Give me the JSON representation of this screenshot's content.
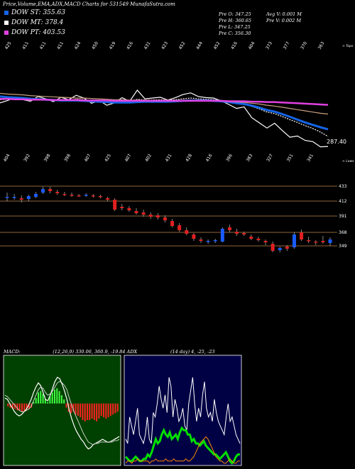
{
  "header": {
    "title": "Price,Volume,EMA,ADX,MACD Charts for 531549 MunafaSutra.com"
  },
  "legend": [
    {
      "label": "DOW ST: 355.63",
      "color": "#1565e6"
    },
    {
      "label": "DOW MT: 378.4",
      "color": "#ffffff"
    },
    {
      "label": "DOW PT: 403.53",
      "color": "#e040e0"
    }
  ],
  "ohlc": {
    "open": "Pre   O: 347.25",
    "high": "Pre   H: 360.65",
    "low": "Pre   L: 347.25",
    "close": "Pre   C: 356.30",
    "avg_vol": "Avg V: 0.001 M",
    "prev_vol": "Pre   V: 0.002  M"
  },
  "chart_data": [
    {
      "type": "line",
      "name": "price-ema",
      "top_tick_labels": [
        "425",
        "411",
        "411",
        "411",
        "424",
        "450",
        "419",
        "416",
        "431",
        "423",
        "452",
        "444",
        "452",
        "416",
        "404",
        "373",
        "377",
        "370",
        "363"
      ],
      "top_tick_title": "< Tops",
      "bottom_tick_labels": [
        "404",
        "392",
        "398",
        "398",
        "407",
        "425",
        "407",
        "402",
        "431",
        "428",
        "416",
        "396",
        "383",
        "327",
        "351",
        "341"
      ],
      "bottom_tick_title": "< Lows",
      "last_value_label": "287.40",
      "series": [
        {
          "color": "#ffffff",
          "values": [
            396,
            402,
            410,
            404,
            400,
            412,
            406,
            399,
            410,
            404,
            415,
            408,
            395,
            402,
            390,
            396,
            409,
            400,
            428,
            406,
            408,
            410,
            403,
            409,
            417,
            421,
            412,
            409,
            408,
            401,
            392,
            382,
            386,
            359,
            346,
            333,
            345,
            327,
            310,
            313,
            302,
            299,
            286,
            287
          ]
        },
        {
          "color": "#ffffff",
          "values": [
            404,
            405,
            406,
            405,
            403,
            404,
            404,
            402,
            403,
            403,
            405,
            404,
            401,
            401,
            398,
            398,
            401,
            400,
            405,
            403,
            403,
            404,
            403,
            404,
            406,
            408,
            406,
            405,
            404,
            402,
            399,
            395,
            394,
            387,
            381,
            373,
            369,
            362,
            354,
            347,
            339,
            332,
            323,
            312
          ]
        },
        {
          "color": "#1565e6",
          "values": [
            412,
            410,
            409,
            408,
            406,
            405,
            404,
            403,
            402,
            402,
            402,
            401,
            400,
            399,
            398,
            397,
            397,
            397,
            398,
            399,
            399,
            399,
            399,
            400,
            401,
            402,
            402,
            402,
            401,
            400,
            398,
            395,
            393,
            389,
            384,
            378,
            374,
            368,
            361,
            354,
            347,
            341,
            335,
            330
          ]
        },
        {
          "color": "#c8a080",
          "values": [
            420,
            418,
            417,
            416,
            414,
            413,
            412,
            411,
            410,
            409,
            408,
            408,
            407,
            406,
            405,
            404,
            404,
            403,
            403,
            403,
            402,
            402,
            402,
            402,
            402,
            402,
            402,
            401,
            401,
            400,
            399,
            398,
            397,
            395,
            393,
            390,
            388,
            385,
            382,
            379,
            376,
            373,
            370,
            368
          ]
        },
        {
          "color": "#e040e0",
          "values": [
            406,
            406,
            405,
            405,
            404,
            404,
            404,
            403,
            403,
            403,
            403,
            402,
            402,
            402,
            402,
            401,
            401,
            401,
            401,
            401,
            401,
            401,
            401,
            401,
            401,
            401,
            401,
            401,
            401,
            401,
            400,
            400,
            400,
            399,
            399,
            398,
            398,
            397,
            396,
            395,
            394,
            393,
            392,
            391
          ]
        }
      ]
    },
    {
      "type": "candlestick",
      "name": "price-candles",
      "price_levels": [
        "433",
        "412",
        "391",
        "368",
        "349"
      ],
      "candles": [
        {
          "o": 418,
          "h": 424,
          "l": 412,
          "c": 418,
          "up": true
        },
        {
          "o": 418,
          "h": 422,
          "l": 414,
          "c": 418,
          "up": true
        },
        {
          "o": 416,
          "h": 420,
          "l": 410,
          "c": 414,
          "up": false
        },
        {
          "o": 415,
          "h": 421,
          "l": 412,
          "c": 419,
          "up": true
        },
        {
          "o": 418,
          "h": 425,
          "l": 416,
          "c": 422,
          "up": true
        },
        {
          "o": 424,
          "h": 432,
          "l": 422,
          "c": 429,
          "up": true
        },
        {
          "o": 429,
          "h": 432,
          "l": 423,
          "c": 426,
          "up": false
        },
        {
          "o": 425,
          "h": 428,
          "l": 421,
          "c": 423,
          "up": false
        },
        {
          "o": 422,
          "h": 425,
          "l": 419,
          "c": 421,
          "up": false
        },
        {
          "o": 421,
          "h": 424,
          "l": 418,
          "c": 420,
          "up": false
        },
        {
          "o": 420,
          "h": 422,
          "l": 418,
          "c": 420,
          "up": false
        },
        {
          "o": 420,
          "h": 423,
          "l": 418,
          "c": 421,
          "up": true
        },
        {
          "o": 420,
          "h": 422,
          "l": 417,
          "c": 419,
          "up": false
        },
        {
          "o": 419,
          "h": 421,
          "l": 416,
          "c": 418,
          "up": false
        },
        {
          "o": 416,
          "h": 418,
          "l": 412,
          "c": 414,
          "up": false
        },
        {
          "o": 414,
          "h": 416,
          "l": 398,
          "c": 400,
          "up": false
        },
        {
          "o": 404,
          "h": 408,
          "l": 399,
          "c": 402,
          "up": false
        },
        {
          "o": 402,
          "h": 405,
          "l": 397,
          "c": 399,
          "up": false
        },
        {
          "o": 398,
          "h": 402,
          "l": 393,
          "c": 395,
          "up": false
        },
        {
          "o": 396,
          "h": 400,
          "l": 390,
          "c": 393,
          "up": false
        },
        {
          "o": 393,
          "h": 396,
          "l": 387,
          "c": 390,
          "up": false
        },
        {
          "o": 392,
          "h": 395,
          "l": 386,
          "c": 389,
          "up": false
        },
        {
          "o": 389,
          "h": 392,
          "l": 382,
          "c": 385,
          "up": false
        },
        {
          "o": 384,
          "h": 387,
          "l": 375,
          "c": 377,
          "up": false
        },
        {
          "o": 378,
          "h": 381,
          "l": 369,
          "c": 371,
          "up": false
        },
        {
          "o": 371,
          "h": 375,
          "l": 364,
          "c": 366,
          "up": false
        },
        {
          "o": 365,
          "h": 367,
          "l": 356,
          "c": 359,
          "up": false
        },
        {
          "o": 358,
          "h": 361,
          "l": 353,
          "c": 356,
          "up": false
        },
        {
          "o": 356,
          "h": 358,
          "l": 352,
          "c": 355,
          "up": true
        },
        {
          "o": 356,
          "h": 359,
          "l": 353,
          "c": 357,
          "up": true
        },
        {
          "o": 355,
          "h": 375,
          "l": 354,
          "c": 373,
          "up": true
        },
        {
          "o": 375,
          "h": 379,
          "l": 368,
          "c": 371,
          "up": false
        },
        {
          "o": 369,
          "h": 373,
          "l": 363,
          "c": 366,
          "up": false
        },
        {
          "o": 367,
          "h": 369,
          "l": 363,
          "c": 365,
          "up": false
        },
        {
          "o": 362,
          "h": 365,
          "l": 357,
          "c": 359,
          "up": false
        },
        {
          "o": 359,
          "h": 362,
          "l": 355,
          "c": 357,
          "up": false
        },
        {
          "o": 356,
          "h": 358,
          "l": 350,
          "c": 354,
          "up": false
        },
        {
          "o": 352,
          "h": 355,
          "l": 340,
          "c": 342,
          "up": false
        },
        {
          "o": 343,
          "h": 348,
          "l": 340,
          "c": 346,
          "up": true
        },
        {
          "o": 345,
          "h": 350,
          "l": 342,
          "c": 348,
          "up": false
        },
        {
          "o": 347,
          "h": 368,
          "l": 345,
          "c": 365,
          "up": true
        },
        {
          "o": 368,
          "h": 372,
          "l": 356,
          "c": 358,
          "up": false
        },
        {
          "o": 357,
          "h": 362,
          "l": 353,
          "c": 356,
          "up": false
        },
        {
          "o": 354,
          "h": 357,
          "l": 350,
          "c": 355,
          "up": false
        },
        {
          "o": 356,
          "h": 363,
          "l": 352,
          "c": 354,
          "up": false
        },
        {
          "o": 353,
          "h": 361,
          "l": 349,
          "c": 358,
          "up": true
        }
      ]
    },
    {
      "type": "bar",
      "name": "macd",
      "label": "MACD:",
      "params": "(12,26,9) 330.06, 360.9, -19.84 ADX",
      "histogram": [
        0,
        -2,
        -3,
        -4,
        -4,
        -5,
        -5,
        -6,
        -6,
        -5,
        -4,
        -3,
        1,
        4,
        8,
        9,
        7,
        3,
        1,
        5,
        8,
        10,
        11,
        9,
        6,
        3,
        -3,
        -6,
        -7,
        -6,
        -8,
        -9,
        -10,
        -12,
        -13,
        -12,
        -12,
        -11,
        -12,
        -13,
        -11,
        -9,
        -10,
        -11,
        -10,
        -9,
        -8,
        -7,
        -6
      ],
      "macd_line": [
        4,
        3,
        0,
        -3,
        -6,
        -8,
        -9,
        -8,
        -6,
        -4,
        -1,
        3,
        8,
        12,
        15,
        13,
        8,
        3,
        2,
        6,
        11,
        16,
        19,
        18,
        14,
        9,
        3,
        -5,
        -11,
        -16,
        -20,
        -23,
        -26,
        -28,
        -31,
        -33,
        -32,
        -30,
        -29,
        -28,
        -27,
        -26,
        -27,
        -28,
        -28,
        -27,
        -26,
        -25,
        -24
      ],
      "signal_line": [
        6,
        5,
        3,
        1,
        -1,
        -3,
        -5,
        -6,
        -6,
        -5,
        -4,
        -2,
        2,
        6,
        10,
        12,
        11,
        8,
        6,
        7,
        9,
        12,
        15,
        16,
        15,
        13,
        10,
        4,
        -1,
        -6,
        -10,
        -14,
        -18,
        -22,
        -25,
        -28,
        -29,
        -30,
        -29,
        -29,
        -28,
        -28,
        -28,
        -28,
        -28,
        -28,
        -27,
        -27,
        -26
      ]
    },
    {
      "type": "line",
      "name": "adx",
      "label": "(14  day) 4,  -25,  -23",
      "series": [
        {
          "color": "#ffffff",
          "values": [
            12,
            10,
            22,
            18,
            14,
            20,
            26,
            14,
            12,
            10,
            14,
            22,
            12,
            10,
            24,
            22,
            28,
            36,
            30,
            26,
            32,
            24,
            40,
            36,
            22,
            30,
            26,
            20,
            22,
            26,
            18,
            16,
            28,
            34,
            40,
            28,
            20,
            26,
            22,
            32,
            38,
            26,
            22,
            24,
            20,
            30,
            24,
            20,
            18,
            16,
            14,
            22,
            28,
            20,
            22,
            18,
            14,
            12,
            10
          ]
        },
        {
          "color": "#00e000",
          "values": [
            4,
            3,
            2,
            2,
            3,
            4,
            3,
            2,
            2,
            3,
            3,
            5,
            4,
            6,
            9,
            12,
            10,
            11,
            14,
            16,
            14,
            13,
            15,
            12,
            13,
            14,
            12,
            15,
            17,
            16,
            16,
            14,
            14,
            11,
            12,
            10,
            10,
            9,
            10,
            11,
            9,
            8,
            7,
            6,
            5,
            5,
            4,
            3,
            4,
            5,
            6,
            4,
            2,
            1,
            2,
            4,
            5,
            5
          ]
        },
        {
          "color": "#ff8c00",
          "values": [
            1,
            2,
            2,
            1,
            2,
            2,
            3,
            2,
            2,
            2,
            2,
            2,
            1,
            2,
            2,
            3,
            2,
            2,
            2,
            2,
            3,
            2,
            2,
            2,
            3,
            2,
            2,
            2,
            2,
            2,
            3,
            2,
            2,
            3,
            4,
            6,
            8,
            10,
            11,
            12,
            13,
            12,
            10,
            8,
            6,
            4,
            3,
            2,
            2,
            1,
            1,
            2,
            3,
            2,
            1,
            1,
            2,
            2
          ]
        }
      ]
    }
  ]
}
